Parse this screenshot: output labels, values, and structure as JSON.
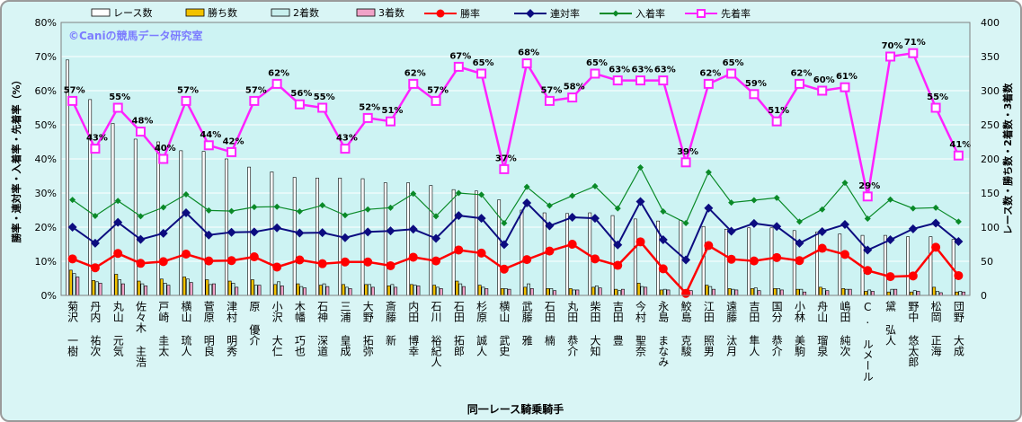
{
  "colors": {
    "frame_bg": "#d9f5f5",
    "plot_bg": "#cdf3f3",
    "grid": "#ffffff",
    "race_bar": "#ffffff",
    "wins_bar": "#f2c200",
    "second_bar": "#c8f0ee",
    "third_bar": "#f0a3c8",
    "win_rate": "#ff0000",
    "rentai_rate": "#0c0c80",
    "fukusho_rate": "#0a8a28",
    "sentyaku_rate": "#ff22ff",
    "watermark": "#7c7cff"
  },
  "chart_data": {
    "type": "bar+line",
    "watermark": "©Caniの競馬データ研究室",
    "xlabel": "同一レース騎乗騎手",
    "ylabel_left": "勝率・連対率・入着率・先着率（%）",
    "ylabel_right": "レース数・勝ち数・2着数・3着数",
    "ylim_left": [
      0,
      80
    ],
    "ylim_right": [
      0,
      400
    ],
    "yticks_left": [
      "0%",
      "10%",
      "20%",
      "30%",
      "40%",
      "50%",
      "60%",
      "70%",
      "80%"
    ],
    "yticks_right": [
      "0",
      "50",
      "100",
      "150",
      "200",
      "250",
      "300",
      "350",
      "400"
    ],
    "legend_position": "top",
    "grid": true,
    "categories": [
      "菊沢 一樹",
      "丹内 祐次",
      "丸山 元気",
      "佐々木 主浩",
      "戸崎 圭太",
      "横山 琉人",
      "菅原 明良",
      "津村 明秀",
      "原 優介",
      "小沢 大仁",
      "木幡 巧也",
      "石神 深道",
      "三浦 皇成",
      "大野 拓弥",
      "斎藤 新",
      "内田 博幸",
      "石川 裕紀人",
      "石田 拓郎",
      "杉原 誠人",
      "横山 武史",
      "武藤 雅",
      "石田 楠",
      "丸田 恭介",
      "柴田 大知",
      "吉田 豊",
      "今村 聖奈",
      "永島 まなみ",
      "鮫島 克駿",
      "江田 照男",
      "遠藤 汰月",
      "吉田 隼人",
      "国分 恭介",
      "小林 美駒",
      "舟山 瑠泉",
      "嶋田 純次",
      "C. ルメール",
      "黛 弘人",
      "野中 悠太郎",
      "松岡 正海",
      "団野 大成"
    ],
    "series": [
      {
        "name": "レース数",
        "kind": "bar",
        "axis": "right",
        "values": [
          345,
          287,
          252,
          229,
          225,
          212,
          211,
          200,
          188,
          181,
          173,
          172,
          172,
          171,
          165,
          165,
          161,
          155,
          153,
          140,
          125,
          121,
          120,
          121,
          117,
          112,
          109,
          110,
          101,
          97,
          99,
          99,
          95,
          93,
          90,
          88,
          88,
          86,
          86,
          82
        ]
      },
      {
        "name": "勝ち数",
        "kind": "bar",
        "axis": "right",
        "values": [
          37,
          22,
          31,
          21,
          24,
          27,
          23,
          21,
          23,
          16,
          17,
          15,
          16,
          16,
          14,
          16,
          15,
          21,
          15,
          10,
          12,
          10,
          10,
          12,
          9,
          18,
          8,
          2,
          15,
          10,
          10,
          10,
          9,
          12,
          10,
          6,
          5,
          5,
          12,
          5
        ]
      },
      {
        "name": "2着数",
        "kind": "bar",
        "axis": "right",
        "values": [
          32,
          20,
          23,
          17,
          18,
          24,
          16,
          18,
          15,
          20,
          13,
          17,
          12,
          16,
          16,
          15,
          12,
          17,
          12,
          10,
          17,
          10,
          8,
          14,
          7,
          13,
          9,
          8,
          13,
          9,
          11,
          10,
          9,
          10,
          9,
          8,
          9,
          7,
          6,
          6
        ]
      },
      {
        "name": "3着数",
        "kind": "bar",
        "axis": "right",
        "values": [
          27,
          18,
          17,
          14,
          15,
          19,
          17,
          12,
          15,
          14,
          11,
          13,
          10,
          12,
          12,
          14,
          10,
          13,
          10,
          9,
          10,
          7,
          8,
          11,
          9,
          12,
          8,
          7,
          9,
          8,
          7,
          8,
          5,
          7,
          9,
          6,
          9,
          6,
          4,
          5
        ]
      },
      {
        "name": "勝率",
        "kind": "line",
        "axis": "left",
        "marker": "circle",
        "values": [
          10.7,
          8.1,
          12.3,
          9.4,
          9.9,
          12.1,
          10.1,
          10.2,
          11.3,
          8.3,
          10.4,
          9.3,
          9.8,
          9.8,
          8.7,
          11.2,
          10.1,
          13.3,
          12.4,
          7.7,
          10.5,
          13.0,
          15.0,
          10.7,
          8.8,
          15.7,
          7.8,
          0.6,
          14.6,
          10.6,
          10.1,
          11.1,
          10.2,
          13.8,
          12.0,
          7.3,
          5.5,
          5.7,
          14.1,
          5.8
        ]
      },
      {
        "name": "連対率",
        "kind": "line",
        "axis": "left",
        "marker": "diamond",
        "values": [
          20.0,
          15.3,
          21.4,
          16.4,
          18.2,
          24.2,
          17.7,
          18.5,
          18.6,
          19.8,
          18.3,
          18.4,
          16.9,
          18.6,
          18.9,
          19.4,
          16.7,
          23.4,
          22.6,
          14.9,
          27.1,
          20.4,
          22.9,
          22.6,
          14.8,
          27.5,
          16.3,
          10.4,
          25.6,
          18.8,
          21.1,
          20.2,
          15.3,
          18.7,
          20.8,
          13.3,
          16.3,
          19.5,
          21.2,
          15.8
        ]
      },
      {
        "name": "入着率",
        "kind": "line",
        "axis": "left",
        "marker": "diamond-small",
        "values": [
          28.0,
          23.3,
          27.7,
          23.2,
          25.8,
          29.6,
          24.9,
          24.7,
          25.9,
          26.0,
          24.6,
          26.4,
          23.5,
          25.2,
          25.7,
          29.8,
          23.2,
          30.0,
          29.5,
          21.2,
          31.8,
          26.3,
          29.2,
          32.0,
          25.5,
          37.5,
          24.6,
          21.2,
          36.1,
          27.2,
          27.9,
          28.6,
          21.6,
          25.2,
          33.0,
          22.5,
          28.1,
          25.5,
          25.7,
          21.6
        ]
      },
      {
        "name": "先着率",
        "kind": "line",
        "axis": "left",
        "marker": "square",
        "values": [
          57.0,
          43.0,
          55.0,
          48.0,
          40.0,
          57.0,
          44.0,
          42.0,
          57.0,
          62.0,
          56.0,
          55.0,
          43.0,
          52.0,
          51.0,
          62.0,
          57.0,
          67.0,
          65.0,
          37.0,
          68.0,
          57.0,
          58.0,
          65.0,
          63.0,
          63.0,
          63.0,
          39.0,
          62.0,
          65.0,
          59.0,
          51.0,
          62.0,
          60.0,
          61.0,
          29.0,
          70.0,
          71.0,
          55.0,
          41.0
        ]
      }
    ],
    "data_labels": {
      "series": "先着率",
      "values": [
        "57%",
        "43%",
        "55%",
        "48%",
        "40%",
        "57%",
        "44%",
        "42%",
        "57%",
        "62%",
        "56%",
        "55%",
        "43%",
        "52%",
        "51%",
        "62%",
        "57%",
        "67%",
        "65%",
        "37%",
        "68%",
        "57%",
        "58%",
        "65%",
        "63%",
        "63%",
        "63%",
        "39%",
        "62%",
        "65%",
        "59%",
        "51%",
        "62%",
        "60%",
        "61%",
        "29%",
        "70%",
        "71%",
        "55%",
        "41%"
      ]
    }
  }
}
